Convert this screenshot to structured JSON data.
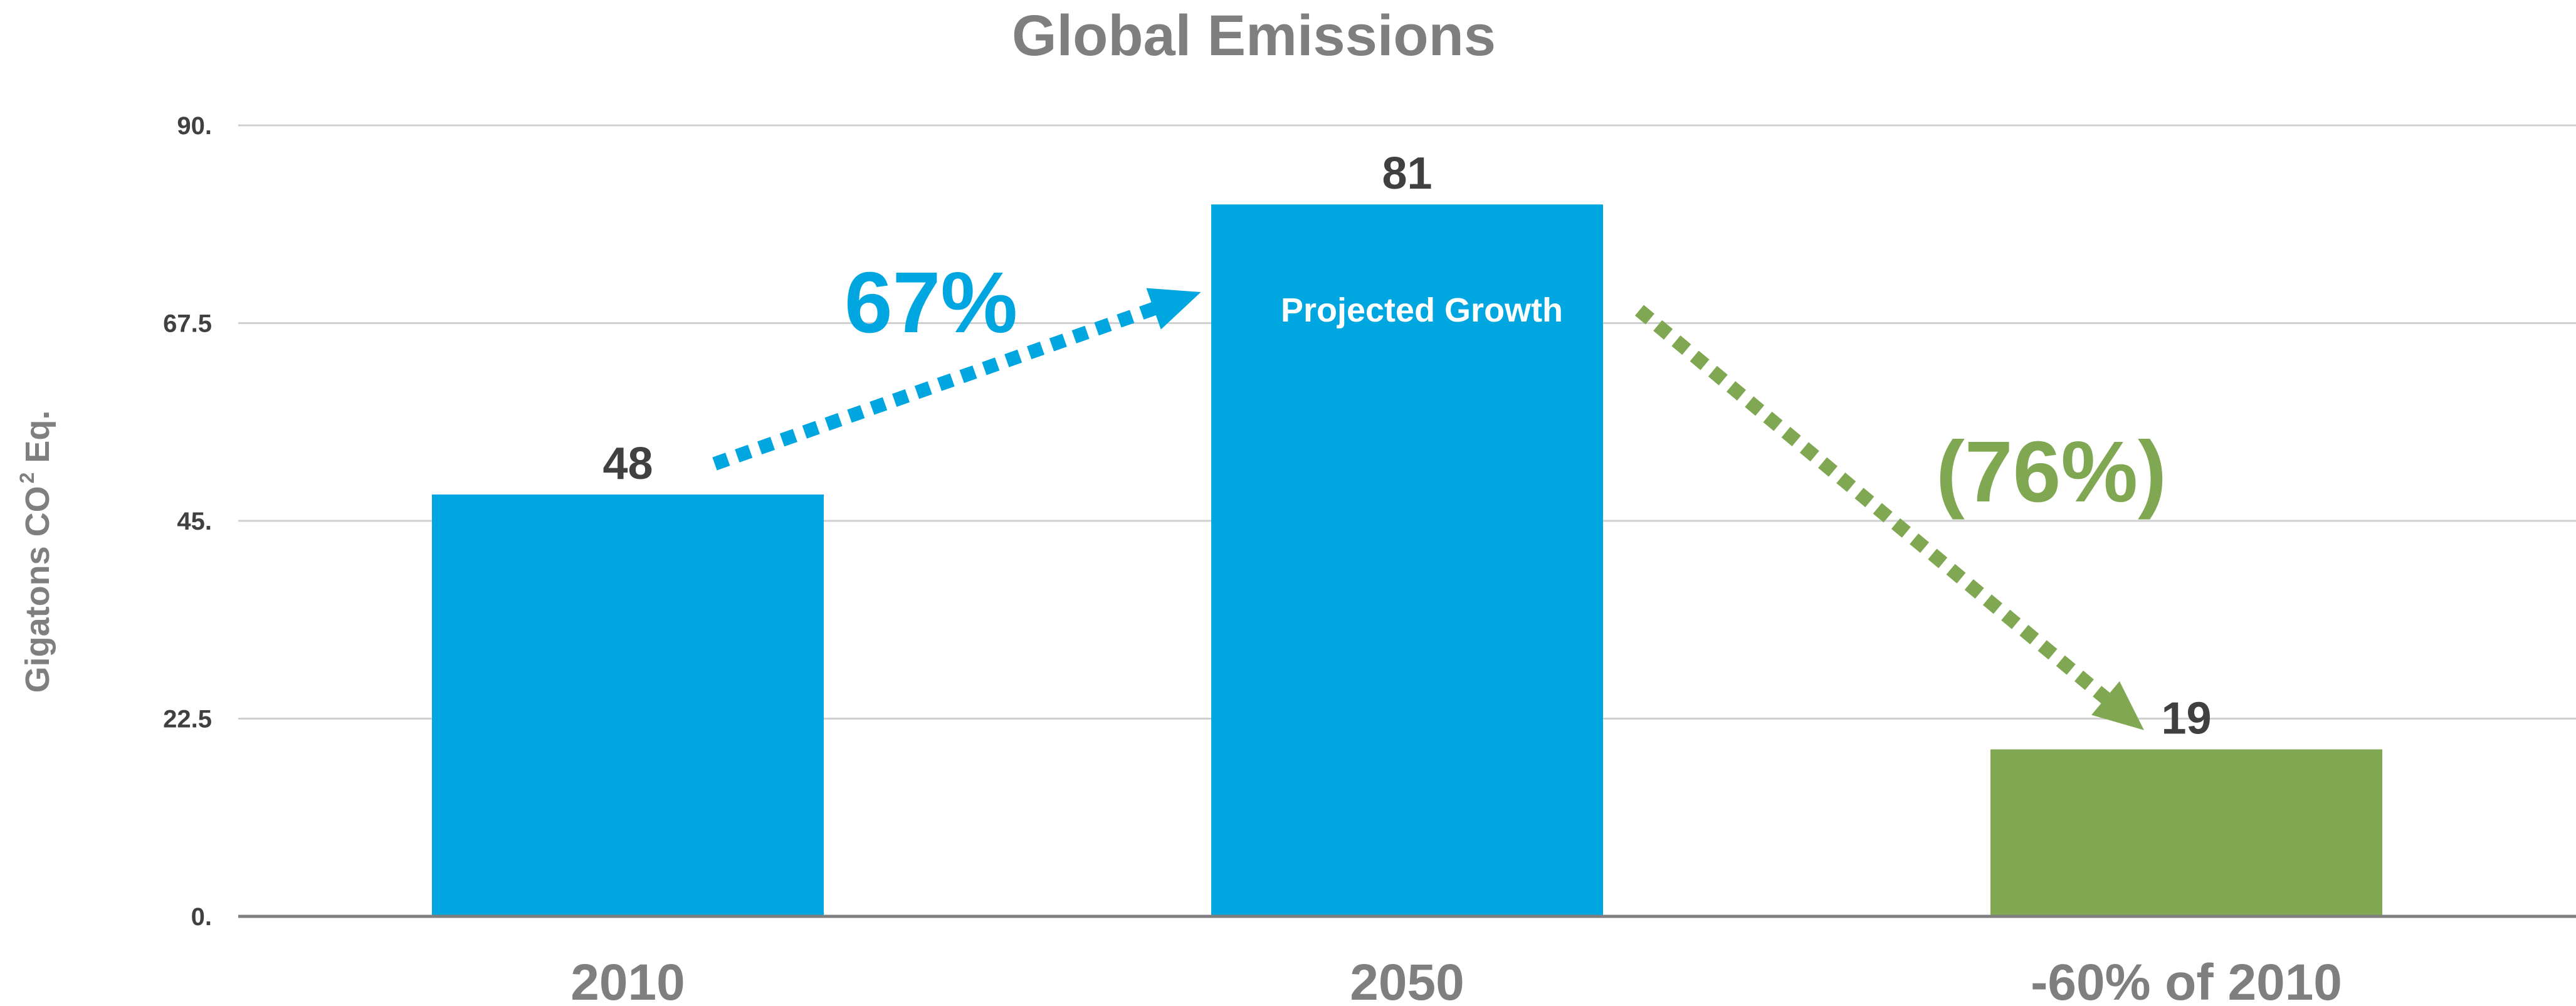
{
  "chart_data": {
    "type": "bar",
    "title": "Global Emissions",
    "ylabel": "Gigatons CO",
    "ylabel_superscript": "2",
    "ylabel_suffix": " Eq.",
    "categories": [
      "2010",
      "2050",
      "-60% of 2010"
    ],
    "values": [
      48,
      81,
      19
    ],
    "data_labels": [
      "48",
      "81",
      "19"
    ],
    "colors": [
      "#00a6e0",
      "#00a6e0",
      "#80a852"
    ],
    "ylim": [
      0,
      90
    ],
    "yticks": [
      0,
      22.5,
      45,
      67.5,
      90
    ],
    "ytick_labels": [
      "0.",
      "22.5",
      "45.",
      "67.5",
      "90."
    ],
    "grid": true,
    "annotations": {
      "growth_pct": "67%",
      "growth_color": "#00a6e0",
      "reduction_pct": "(76%)",
      "reduction_color": "#80a852",
      "bar_note": "Projected Growth"
    }
  }
}
